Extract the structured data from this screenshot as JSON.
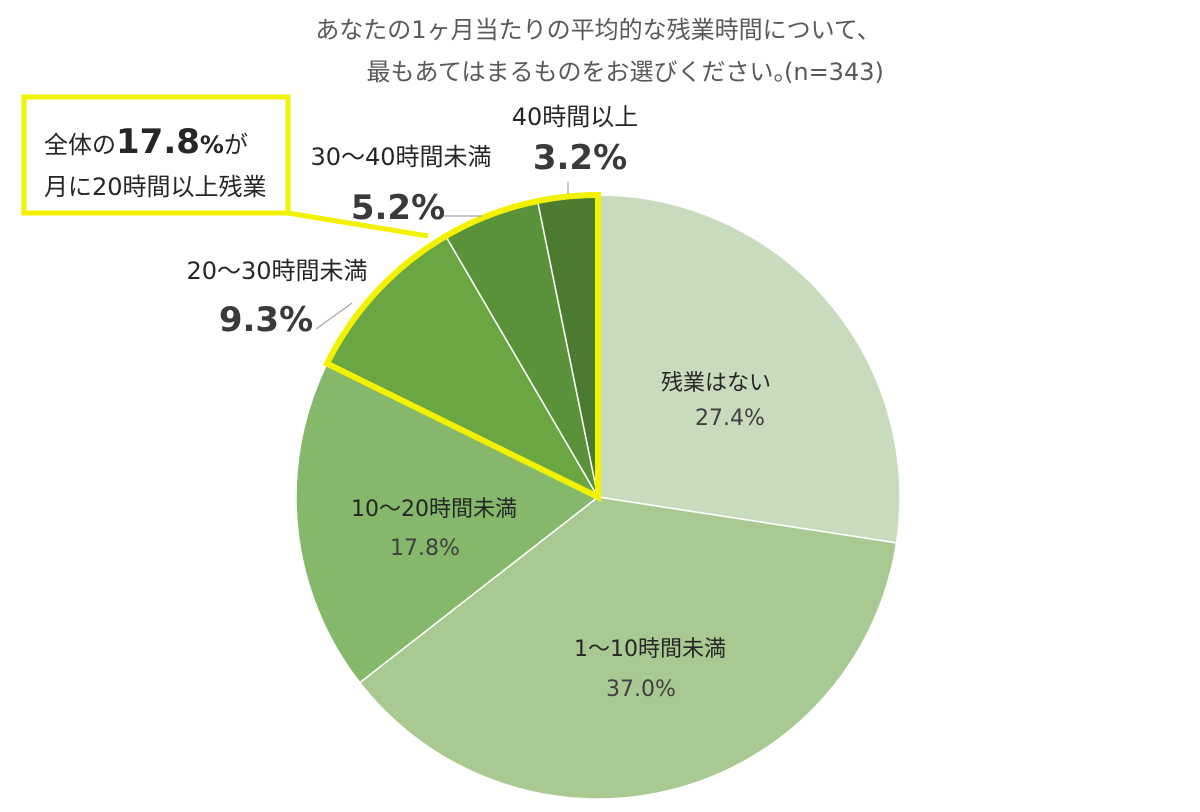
{
  "chart_data": {
    "type": "pie",
    "title_line1": "あなたの1ヶ月当たりの平均的な残業時間について、",
    "title_line2": "最もあてはまるものをお選びください。",
    "title_n": "(n=343)",
    "slices": [
      {
        "label": "残業はない",
        "value": 27.4,
        "value_label": "27.4%",
        "color": "#c8dbbc"
      },
      {
        "label": "1〜10時間未満",
        "value": 37.0,
        "value_label": "37.0%",
        "color": "#a9c993"
      },
      {
        "label": "10〜20時間未満",
        "value": 17.8,
        "value_label": "17.8%",
        "color": "#86b86b"
      },
      {
        "label": "20〜30時間未満",
        "value": 9.3,
        "value_label": "9.3%",
        "color": "#6aa743"
      },
      {
        "label": "30〜40時間未満",
        "value": 5.2,
        "value_label": "5.2%",
        "color": "#5a923a"
      },
      {
        "label": "40時間以上",
        "value": 3.2,
        "value_label": "3.2%",
        "color": "#4a7b30"
      }
    ],
    "highlight": {
      "text_prefix": "全体の",
      "text_value": "17.8",
      "text_unit": "%",
      "text_suffix": "が",
      "text_line2": "月に20時間以上残業",
      "color": "#f2f200"
    }
  }
}
